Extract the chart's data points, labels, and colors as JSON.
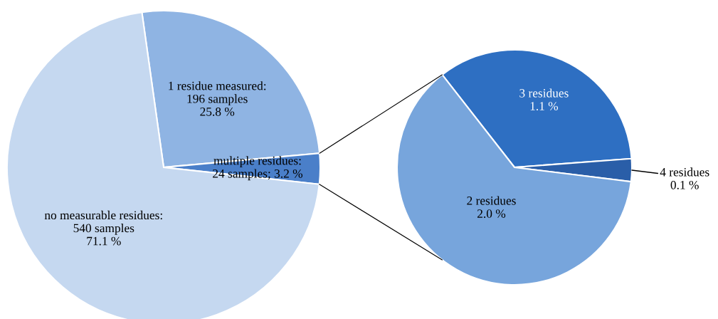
{
  "chart_data": [
    {
      "type": "pie",
      "categories": [
        "1 residue measured:\n196 samples\n25.8 %",
        "multiple residues:\n24 samples; 3.2 %",
        "no measurable residues:\n540 samples\n71.1 %"
      ],
      "values": [
        196,
        24,
        540
      ],
      "colors": [
        "#8fb4e3",
        "#4a7fc9",
        "#c5d8f0"
      ]
    },
    {
      "type": "pie",
      "categories": [
        "3 residues",
        "4 residues",
        "2 residues"
      ],
      "values": [
        1.1,
        0.1,
        2.0
      ],
      "value_labels": [
        "1.1 %",
        "0.1 %",
        "2.0 %"
      ],
      "colors": [
        "#2e6fc2",
        "#2a5ea8",
        "#77a5dc"
      ]
    }
  ]
}
